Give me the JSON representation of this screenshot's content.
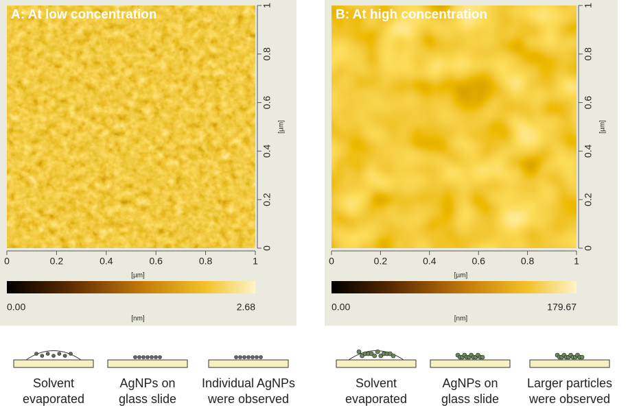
{
  "panels": [
    {
      "title": "A:  At low concentration",
      "xlim": [
        0,
        1
      ],
      "ylim": [
        0,
        1
      ],
      "xticks": [
        0,
        0.2,
        0.4,
        0.6,
        0.8,
        1
      ],
      "yticks": [
        0,
        0.2,
        0.4,
        0.6,
        0.8,
        1
      ],
      "x_unit": "[µm]",
      "y_unit": "[µm]",
      "colorbar": {
        "ticks": [
          {
            "value": 0,
            "label": "0.00"
          },
          2.68
        ],
        "unit": "[nm]"
      }
    },
    {
      "title": "B:  At high concentration",
      "xlim": [
        0,
        1
      ],
      "ylim": [
        0,
        1
      ],
      "xticks": [
        0,
        0.2,
        0.4,
        0.6,
        0.8,
        1
      ],
      "yticks": [
        0,
        0.2,
        0.4,
        0.6,
        0.8,
        1
      ],
      "x_unit": "[µm]",
      "y_unit": "[µm]",
      "colorbar": {
        "ticks": [
          {
            "value": 0,
            "label": "0.00"
          },
          179.67
        ],
        "unit": "[nm]"
      }
    }
  ],
  "captions": [
    [
      "Solvent",
      "evaporated"
    ],
    [
      "AgNPs on",
      "glass slide"
    ],
    [
      "Individual AgNPs",
      "were observed"
    ],
    [
      "Solvent",
      "evaporated"
    ],
    [
      "AgNPs on",
      "glass slide"
    ],
    [
      "Larger particles",
      "were observed"
    ]
  ]
}
